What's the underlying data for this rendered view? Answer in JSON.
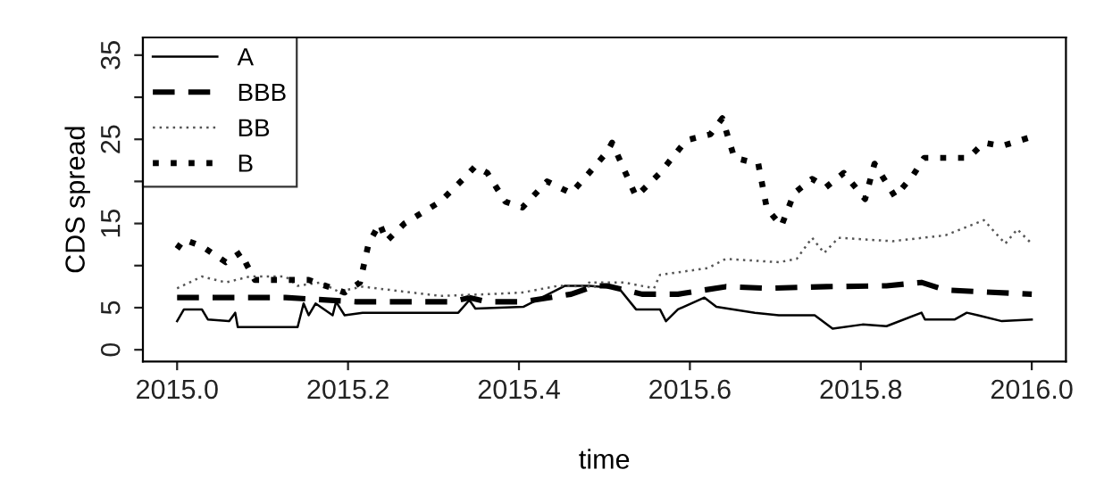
{
  "chart_data": {
    "type": "line",
    "xlabel": "time",
    "ylabel": "CDS spread",
    "xlim": [
      2014.96,
      2016.04
    ],
    "ylim": [
      -1.4,
      37.1
    ],
    "xticks": [
      {
        "value": 2015.0,
        "label": "2015.0"
      },
      {
        "value": 2015.2,
        "label": "2015.2"
      },
      {
        "value": 2015.4,
        "label": "2015.4"
      },
      {
        "value": 2015.6,
        "label": "2015.6"
      },
      {
        "value": 2015.8,
        "label": "2015.8"
      },
      {
        "value": 2016.0,
        "label": "2016.0"
      }
    ],
    "yticks": [
      0,
      5,
      {
        "value": 10,
        "label": null
      },
      15,
      {
        "value": 20,
        "label": null
      },
      25,
      {
        "value": 30,
        "label": null
      },
      35
    ],
    "grid": false,
    "legend": "top left",
    "marker": "none",
    "series": [
      {
        "name": "A",
        "color": "#000000",
        "line_style": "solid",
        "x": [
          2015.0,
          2015.008,
          2015.029,
          2015.036,
          2015.061,
          2015.068,
          2015.071,
          2015.141,
          2015.148,
          2015.154,
          2015.162,
          2015.182,
          2015.186,
          2015.196,
          2015.217,
          2015.224,
          2015.329,
          2015.342,
          2015.349,
          2015.405,
          2015.454,
          2015.482,
          2015.517,
          2015.537,
          2015.565,
          2015.572,
          2015.586,
          2015.617,
          2015.631,
          2015.676,
          2015.704,
          2015.746,
          2015.767,
          2015.802,
          2015.83,
          2015.871,
          2015.875,
          2015.91,
          2015.924,
          2015.937,
          2015.965,
          2016.0
        ],
        "values": [
          3.4,
          4.8,
          4.8,
          3.6,
          3.4,
          4.4,
          2.7,
          2.7,
          5.5,
          4.1,
          5.5,
          4.1,
          5.7,
          4.1,
          4.4,
          4.4,
          4.4,
          5.9,
          4.9,
          5.1,
          7.6,
          7.6,
          7.3,
          4.8,
          4.8,
          3.4,
          4.8,
          6.2,
          5.1,
          4.4,
          4.1,
          4.1,
          2.5,
          3.0,
          2.8,
          4.4,
          3.6,
          3.6,
          4.4,
          4.1,
          3.4,
          3.6
        ]
      },
      {
        "name": "BBB",
        "color": "#000000",
        "line_style": "dashed",
        "x": [
          2015.0,
          2015.071,
          2015.127,
          2015.21,
          2015.322,
          2015.342,
          2015.363,
          2015.405,
          2015.461,
          2015.489,
          2015.503,
          2015.544,
          2015.586,
          2015.642,
          2015.69,
          2015.76,
          2015.83,
          2015.871,
          2015.899,
          2016.0
        ],
        "values": [
          6.2,
          6.2,
          6.2,
          5.7,
          5.7,
          6.2,
          5.7,
          5.7,
          6.6,
          7.6,
          7.6,
          6.6,
          6.6,
          7.5,
          7.3,
          7.5,
          7.6,
          8.0,
          7.1,
          6.6
        ]
      },
      {
        "name": "BB",
        "color": "#555555",
        "line_style": "dotted",
        "x": [
          2015.0,
          2015.029,
          2015.057,
          2015.085,
          2015.127,
          2015.141,
          2015.168,
          2015.189,
          2015.217,
          2015.266,
          2015.308,
          2015.363,
          2015.404,
          2015.446,
          2015.489,
          2015.482,
          2015.523,
          2015.558,
          2015.565,
          2015.621,
          2015.642,
          2015.704,
          2015.725,
          2015.743,
          2015.757,
          2015.774,
          2015.837,
          2015.899,
          2015.944,
          2015.969,
          2015.983,
          2016.0
        ],
        "values": [
          7.3,
          8.7,
          8.0,
          8.7,
          8.7,
          7.6,
          8.0,
          6.9,
          7.5,
          6.9,
          6.4,
          6.6,
          6.8,
          7.6,
          7.5,
          8.0,
          8.0,
          7.3,
          8.9,
          9.7,
          10.8,
          10.4,
          10.8,
          13.3,
          11.5,
          13.3,
          12.9,
          13.6,
          15.4,
          12.6,
          14.3,
          12.6
        ]
      },
      {
        "name": "B",
        "color": "#000000",
        "line_style": "dotted",
        "x": [
          2015.0,
          2015.008,
          2015.029,
          2015.057,
          2015.075,
          2015.081,
          2015.091,
          2015.127,
          2015.154,
          2015.182,
          2015.196,
          2015.214,
          2015.224,
          2015.237,
          2015.245,
          2015.266,
          2015.308,
          2015.335,
          2015.349,
          2015.363,
          2015.384,
          2015.404,
          2015.433,
          2015.461,
          2015.482,
          2015.503,
          2015.509,
          2015.537,
          2015.565,
          2015.596,
          2015.624,
          2015.638,
          2015.652,
          2015.68,
          2015.69,
          2015.707,
          2015.722,
          2015.743,
          2015.759,
          2015.78,
          2015.805,
          2015.816,
          2015.84,
          2015.861,
          2015.874,
          2015.926,
          2015.944,
          2015.965,
          2016.0
        ],
        "values": [
          12.0,
          13.1,
          12.3,
          10.4,
          11.6,
          10.2,
          8.3,
          8.3,
          8.3,
          7.3,
          6.8,
          8.0,
          12.6,
          15.0,
          12.9,
          15.0,
          17.6,
          20.3,
          21.8,
          21.0,
          17.6,
          16.9,
          20.0,
          18.6,
          21.0,
          23.5,
          24.6,
          18.2,
          21.0,
          24.9,
          25.6,
          27.5,
          22.8,
          22.1,
          16.8,
          14.7,
          18.6,
          20.3,
          19.3,
          21.0,
          17.9,
          22.1,
          18.2,
          20.7,
          22.8,
          22.8,
          24.6,
          24.2,
          25.3
        ]
      }
    ]
  }
}
